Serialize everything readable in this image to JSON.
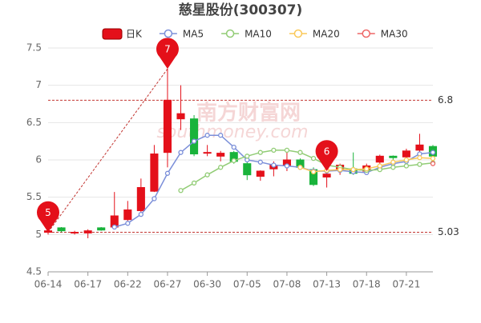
{
  "chart_data": {
    "type": "candlestick",
    "title": "慈星股份(300307)",
    "categories": [
      "06-14",
      null,
      null,
      "06-17",
      null,
      null,
      "06-22",
      null,
      null,
      "06-27",
      null,
      null,
      "06-30",
      null,
      null,
      "07-05",
      null,
      null,
      "07-08",
      null,
      null,
      "07-13",
      null,
      null,
      "07-18",
      null,
      null,
      "07-21",
      null,
      null
    ],
    "series": [
      {
        "name": "日K",
        "up_color": "#e4101a",
        "down_color": "#19b33b",
        "open": [
          5.03,
          5.09,
          5.03,
          5.02,
          5.09,
          5.1,
          5.2,
          5.32,
          5.58,
          6.1,
          6.55,
          6.55,
          6.1,
          6.05,
          6.1,
          5.95,
          5.78,
          5.88,
          5.92,
          6.0,
          5.87,
          5.77,
          5.87,
          5.88,
          5.85,
          5.97,
          6.05,
          6.04,
          6.13,
          6.18
        ],
        "close": [
          5.05,
          5.05,
          5.03,
          5.05,
          5.06,
          5.25,
          5.33,
          5.63,
          6.08,
          6.8,
          6.62,
          6.08,
          6.1,
          6.09,
          5.98,
          5.8,
          5.85,
          5.93,
          6.0,
          5.9,
          5.67,
          5.81,
          5.93,
          5.82,
          5.92,
          6.05,
          6.03,
          6.12,
          6.2,
          6.05
        ],
        "low": [
          5.0,
          5.03,
          5.0,
          4.95,
          5.05,
          5.08,
          5.15,
          5.3,
          5.57,
          5.9,
          6.4,
          6.05,
          6.05,
          5.98,
          5.95,
          5.73,
          5.72,
          5.78,
          5.85,
          5.88,
          5.65,
          5.63,
          5.8,
          5.8,
          5.82,
          5.92,
          6.0,
          5.99,
          6.05,
          6.02
        ],
        "high": [
          5.1,
          5.1,
          5.05,
          5.07,
          5.1,
          5.57,
          5.45,
          5.75,
          6.2,
          7.22,
          7.0,
          6.6,
          6.2,
          6.12,
          6.12,
          5.97,
          5.86,
          5.98,
          6.1,
          6.02,
          5.9,
          5.85,
          5.95,
          6.1,
          5.95,
          6.07,
          6.06,
          6.15,
          6.35,
          6.2
        ]
      },
      {
        "name": "MA5",
        "color": "#7b8fd9",
        "values": [
          null,
          null,
          null,
          null,
          null,
          5.1,
          5.15,
          5.27,
          5.48,
          5.82,
          6.1,
          6.25,
          6.33,
          6.33,
          6.17,
          6.0,
          5.97,
          5.93,
          5.92,
          5.9,
          5.85,
          5.85,
          5.86,
          5.84,
          5.83,
          5.9,
          5.95,
          5.98,
          6.08,
          6.1
        ]
      },
      {
        "name": "MA10",
        "color": "#91cc75",
        "values": [
          null,
          null,
          null,
          null,
          null,
          null,
          null,
          null,
          null,
          null,
          5.59,
          5.69,
          5.8,
          5.9,
          5.99,
          6.05,
          6.1,
          6.13,
          6.13,
          6.1,
          6.02,
          5.93,
          5.9,
          5.87,
          5.86,
          5.87,
          5.9,
          5.92,
          5.94,
          5.96
        ]
      },
      {
        "name": "MA20",
        "color": "#fac858",
        "values": [
          null,
          null,
          null,
          null,
          null,
          null,
          null,
          null,
          null,
          null,
          null,
          null,
          null,
          null,
          null,
          null,
          null,
          null,
          null,
          5.9,
          5.84,
          5.86,
          5.87,
          5.87,
          5.88,
          5.92,
          5.97,
          6.0,
          6.03,
          6.02
        ]
      },
      {
        "name": "MA30",
        "color": "#ee6666",
        "values": [
          null,
          null,
          null,
          null,
          null,
          null,
          null,
          null,
          null,
          null,
          null,
          null,
          null,
          null,
          null,
          null,
          null,
          null,
          null,
          null,
          null,
          null,
          null,
          null,
          null,
          null,
          null,
          null,
          null,
          5.95
        ]
      }
    ],
    "markers": [
      {
        "label": "5",
        "index": 0,
        "value": 5.03
      },
      {
        "label": "7",
        "index": 9,
        "value": 7.22
      },
      {
        "label": "6",
        "index": 21,
        "value": 5.85
      }
    ],
    "hlines": [
      6.8,
      5.03
    ],
    "ylim": [
      4.5,
      7.5
    ],
    "yticks": [
      4.5,
      5,
      5.5,
      6,
      6.5,
      7,
      7.5
    ],
    "grid": true,
    "watermark": [
      "南方财富网",
      "southmoney.com"
    ]
  }
}
